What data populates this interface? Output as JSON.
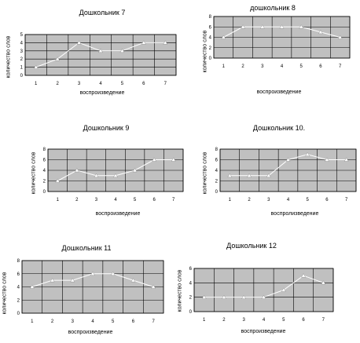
{
  "chart_data": [
    {
      "type": "line",
      "title": "Дошкольник 7",
      "xlabel": "воспроизведение",
      "ylabel": "количество слов",
      "ylim": [
        0,
        5
      ],
      "categories": [
        "1",
        "2",
        "3",
        "4",
        "5",
        "6",
        "7"
      ],
      "values": [
        1,
        2,
        4,
        3,
        3,
        4,
        4
      ],
      "grid": true
    },
    {
      "type": "line",
      "title": "дошкольник 8",
      "xlabel": "воспроизведение",
      "ylabel": "количество слов",
      "ylim": [
        0,
        8
      ],
      "categories": [
        "1",
        "2",
        "3",
        "4",
        "5",
        "6",
        "7"
      ],
      "values": [
        4,
        6,
        6,
        6,
        6,
        5,
        4
      ],
      "grid": true
    },
    {
      "type": "line",
      "title": "Дошкольник 9",
      "xlabel": "воспроизведение",
      "ylabel": "количество слов",
      "ylim": [
        0,
        8
      ],
      "categories": [
        "1",
        "2",
        "3",
        "4",
        "5",
        "6",
        "7"
      ],
      "values": [
        2,
        4,
        3,
        3,
        4,
        6,
        6
      ],
      "grid": true
    },
    {
      "type": "line",
      "title": "Дошкольник 10.",
      "xlabel": "воспролизведение",
      "ylabel": "количество слов",
      "ylim": [
        0,
        8
      ],
      "categories": [
        "1",
        "2",
        "3",
        "4",
        "5",
        "6",
        "7"
      ],
      "values": [
        3,
        3,
        3,
        6,
        7,
        6,
        6
      ],
      "grid": true
    },
    {
      "type": "line",
      "title": "Дошкольник 11",
      "xlabel": "воспроизведение",
      "ylabel": "количество слов",
      "ylim": [
        0,
        8
      ],
      "categories": [
        "1",
        "2",
        "3",
        "4",
        "5",
        "6",
        "7"
      ],
      "values": [
        4,
        5,
        5,
        6,
        6,
        5,
        4
      ],
      "grid": true
    },
    {
      "type": "line",
      "title": "Дошкольник 12",
      "xlabel": "воспроизведение",
      "ylabel": "количество слов",
      "ylim": [
        0,
        6
      ],
      "categories": [
        "1",
        "2",
        "3",
        "4",
        "5",
        "6",
        "7"
      ],
      "values": [
        2,
        2,
        2,
        2,
        3,
        5,
        4
      ],
      "grid": true
    }
  ],
  "colors": {
    "plot_bg": "#c0c0c0",
    "grid": "#000000",
    "line": "#ffffff",
    "marker": "#ffffff"
  }
}
